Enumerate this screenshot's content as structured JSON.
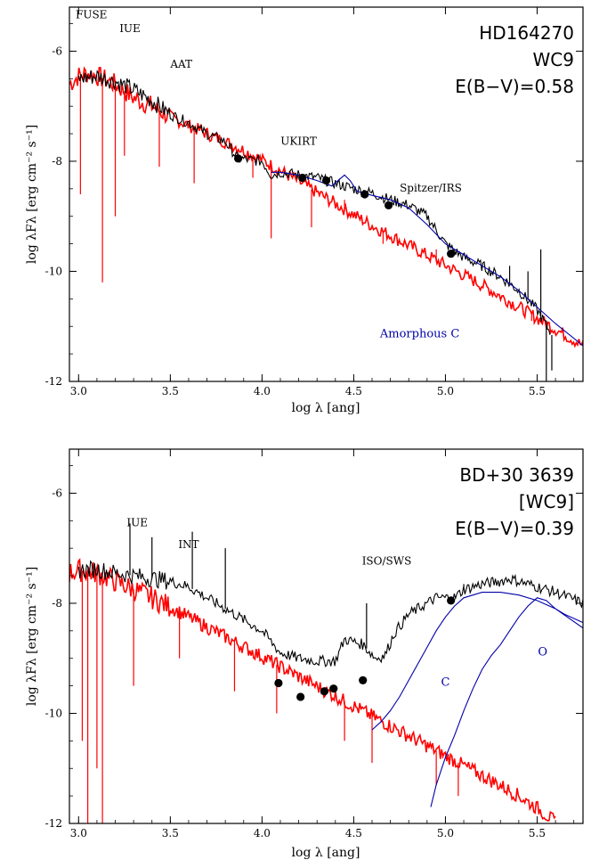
{
  "colors": {
    "model": "#ff0000",
    "observed": "#000000",
    "dust": "#0000aa",
    "photometry": "#000000"
  },
  "chart_data": [
    {
      "type": "line",
      "panel": "top",
      "xlabel": "log λ [ang]",
      "ylabel": "log λFλ [erg cm⁻² s⁻¹]",
      "xlim": [
        2.95,
        5.75
      ],
      "ylim": [
        -12,
        -5.2
      ],
      "xticks": [
        3.0,
        3.5,
        4.0,
        4.5,
        5.0,
        5.5
      ],
      "xtick_labels": [
        "3.0",
        "3.5",
        "4.0",
        "4.5",
        "5.0",
        "5.5"
      ],
      "yticks": [
        -12,
        -10,
        -8,
        -6
      ],
      "ytick_labels": [
        "-12",
        "-10",
        "-8",
        "-6"
      ],
      "corner_text": [
        "HD164270",
        "WC9",
        "E(B−V)=0.58"
      ],
      "annotations": [
        {
          "text": "FUSE",
          "x": 3.07,
          "y": -5.4
        },
        {
          "text": "IUE",
          "x": 3.28,
          "y": -5.65
        },
        {
          "text": "AAT",
          "x": 3.56,
          "y": -6.3
        },
        {
          "text": "UKIRT",
          "x": 4.2,
          "y": -7.7
        },
        {
          "text": "Spitzer/IRS",
          "x": 4.92,
          "y": -8.55
        }
      ],
      "colored_annotations": [
        {
          "text": "Amorphous C",
          "x": 4.86,
          "y": -11.2,
          "color": "#0000aa"
        }
      ],
      "series": [
        {
          "name": "model",
          "color": "#ff0000",
          "x": [
            2.95,
            3.0,
            3.05,
            3.1,
            3.2,
            3.3,
            3.4,
            3.5,
            3.6,
            3.7,
            3.8,
            3.9,
            4.0,
            4.1,
            4.2,
            4.3,
            4.4,
            4.5,
            4.6,
            4.7,
            4.8,
            4.9,
            5.0,
            5.1,
            5.2,
            5.3,
            5.4,
            5.5,
            5.6,
            5.75
          ],
          "y": [
            -6.6,
            -6.45,
            -6.4,
            -6.45,
            -6.6,
            -6.85,
            -7.0,
            -7.2,
            -7.35,
            -7.5,
            -7.65,
            -7.8,
            -7.98,
            -8.17,
            -8.37,
            -8.57,
            -8.77,
            -8.97,
            -9.17,
            -9.35,
            -9.53,
            -9.71,
            -9.89,
            -10.07,
            -10.25,
            -10.45,
            -10.65,
            -10.85,
            -11.05,
            -11.35
          ],
          "noise": 0.12,
          "spikes": [
            [
              3.01,
              -8.6
            ],
            [
              3.13,
              -10.2
            ],
            [
              3.2,
              -9.0
            ],
            [
              3.25,
              -7.9
            ],
            [
              3.44,
              -8.1
            ],
            [
              3.63,
              -8.4
            ],
            [
              3.95,
              -8.3
            ],
            [
              4.05,
              -9.4
            ],
            [
              4.27,
              -9.2
            ],
            [
              4.45,
              -8.7
            ],
            [
              4.66,
              -9.5
            ],
            [
              4.95,
              -9.6
            ],
            [
              5.08,
              -10.1
            ],
            [
              5.28,
              -10.4
            ],
            [
              5.47,
              -10.9
            ]
          ]
        },
        {
          "name": "observed",
          "color": "#000000",
          "x": [
            3.0,
            3.1,
            3.2,
            3.3,
            3.4,
            3.5,
            3.6,
            3.7,
            3.8,
            3.87,
            4.0,
            4.05,
            4.1,
            4.2,
            4.3,
            4.4,
            4.5,
            4.6,
            4.7,
            4.8,
            4.9,
            5.0,
            5.1,
            5.2,
            5.3,
            5.4,
            5.5,
            5.57
          ],
          "y": [
            -6.5,
            -6.45,
            -6.55,
            -6.7,
            -6.9,
            -7.15,
            -7.3,
            -7.5,
            -7.65,
            -7.95,
            -8.0,
            -8.25,
            -8.2,
            -8.25,
            -8.3,
            -8.4,
            -8.5,
            -8.58,
            -8.7,
            -8.8,
            -9.0,
            -9.5,
            -9.75,
            -9.9,
            -10.1,
            -10.35,
            -10.7,
            -11.1
          ],
          "noise": 0.1,
          "spikes": [
            [
              5.35,
              -9.9
            ],
            [
              5.45,
              -10.0
            ],
            [
              5.52,
              -9.6
            ],
            [
              5.55,
              -12.0
            ],
            [
              5.58,
              -11.8
            ]
          ]
        },
        {
          "name": "amorphous-C",
          "color": "#0000aa",
          "x": [
            4.05,
            4.1,
            4.2,
            4.3,
            4.38,
            4.45,
            4.48,
            4.52,
            4.6,
            4.7,
            4.8,
            4.9,
            5.0,
            5.1,
            5.2,
            5.3,
            5.4,
            5.5,
            5.6,
            5.75
          ],
          "y": [
            -8.2,
            -8.2,
            -8.25,
            -8.35,
            -8.45,
            -8.25,
            -8.35,
            -8.55,
            -8.62,
            -8.7,
            -8.85,
            -9.15,
            -9.5,
            -9.7,
            -9.9,
            -10.1,
            -10.35,
            -10.65,
            -10.95,
            -11.35
          ]
        }
      ],
      "photometry": {
        "x": [
          3.87,
          4.22,
          4.35,
          4.56,
          4.69,
          5.03
        ],
        "y": [
          -7.95,
          -8.3,
          -8.35,
          -8.6,
          -8.8,
          -9.68
        ]
      }
    },
    {
      "type": "line",
      "panel": "bottom",
      "xlabel": "log λ [ang]",
      "ylabel": "log λFλ [erg cm⁻² s⁻¹]",
      "xlim": [
        2.95,
        5.75
      ],
      "ylim": [
        -12,
        -5.2
      ],
      "xticks": [
        3.0,
        3.5,
        4.0,
        4.5,
        5.0,
        5.5
      ],
      "xtick_labels": [
        "3.0",
        "3.5",
        "4.0",
        "4.5",
        "5.0",
        "5.5"
      ],
      "yticks": [
        -12,
        -10,
        -8,
        -6
      ],
      "ytick_labels": [
        "-12",
        "-10",
        "-8",
        "-6"
      ],
      "corner_text": [
        "BD+30 3639",
        "[WC9]",
        "E(B−V)=0.39"
      ],
      "annotations": [
        {
          "text": "IUE",
          "x": 3.32,
          "y": -6.6
        },
        {
          "text": "INT",
          "x": 3.6,
          "y": -7.0
        },
        {
          "text": "ISO/SWS",
          "x": 4.68,
          "y": -7.3
        }
      ],
      "colored_annotations": [
        {
          "text": "C",
          "x": 5.0,
          "y": -9.5,
          "color": "#0000aa"
        },
        {
          "text": "O",
          "x": 5.53,
          "y": -8.95,
          "color": "#0000aa"
        }
      ],
      "series": [
        {
          "name": "model",
          "color": "#ff0000",
          "x": [
            2.95,
            3.0,
            3.1,
            3.2,
            3.3,
            3.4,
            3.5,
            3.6,
            3.7,
            3.8,
            3.9,
            4.0,
            4.1,
            4.2,
            4.3,
            4.4,
            4.5,
            4.6,
            4.7,
            4.8,
            4.9,
            5.0,
            5.1,
            5.2,
            5.3,
            5.4,
            5.5,
            5.6
          ],
          "y": [
            -7.45,
            -7.4,
            -7.45,
            -7.6,
            -7.75,
            -7.9,
            -8.07,
            -8.25,
            -8.43,
            -8.61,
            -8.79,
            -8.97,
            -9.15,
            -9.33,
            -9.51,
            -9.69,
            -9.87,
            -10.05,
            -10.23,
            -10.41,
            -10.59,
            -10.77,
            -10.95,
            -11.13,
            -11.31,
            -11.5,
            -11.72,
            -11.98
          ],
          "noise": 0.13,
          "spikes": [
            [
              3.02,
              -10.5
            ],
            [
              3.05,
              -12.0
            ],
            [
              3.1,
              -11.0
            ],
            [
              3.13,
              -12.0
            ],
            [
              3.3,
              -9.5
            ],
            [
              3.55,
              -9.0
            ],
            [
              3.85,
              -9.6
            ],
            [
              4.08,
              -10.0
            ],
            [
              4.45,
              -10.5
            ],
            [
              4.6,
              -10.9
            ],
            [
              4.95,
              -11.3
            ],
            [
              5.07,
              -11.5
            ]
          ]
        },
        {
          "name": "observed",
          "color": "#000000",
          "x": [
            3.0,
            3.1,
            3.2,
            3.3,
            3.4,
            3.5,
            3.6,
            3.7,
            3.8,
            3.9,
            4.0,
            4.1,
            4.2,
            4.3,
            4.4,
            4.45,
            4.55,
            4.62,
            4.67,
            4.72,
            4.8,
            4.9,
            4.95,
            5.05,
            5.1,
            5.2,
            5.3,
            5.35,
            5.4,
            5.5,
            5.6,
            5.75
          ],
          "y": [
            -7.4,
            -7.38,
            -7.45,
            -7.5,
            -7.55,
            -7.6,
            -7.7,
            -7.9,
            -8.1,
            -8.3,
            -8.5,
            -8.9,
            -9.0,
            -9.05,
            -9.05,
            -8.65,
            -8.75,
            -9.0,
            -8.95,
            -8.55,
            -8.2,
            -8.0,
            -7.9,
            -7.9,
            -7.75,
            -7.65,
            -7.6,
            -7.55,
            -7.6,
            -7.7,
            -7.8,
            -8.0
          ],
          "noise": 0.1,
          "spikes": [
            [
              3.28,
              -6.55
            ],
            [
              3.4,
              -6.8
            ],
            [
              3.62,
              -6.7
            ],
            [
              3.8,
              -7.0
            ],
            [
              4.57,
              -8.0
            ],
            [
              5.1,
              -7.65
            ]
          ]
        },
        {
          "name": "dust-C",
          "color": "#0000aa",
          "x": [
            4.6,
            4.65,
            4.7,
            4.75,
            4.8,
            4.85,
            4.9,
            4.95,
            5.0,
            5.05,
            5.1,
            5.2,
            5.3,
            5.4,
            5.5,
            5.6,
            5.75
          ],
          "y": [
            -10.3,
            -10.15,
            -9.95,
            -9.7,
            -9.4,
            -9.1,
            -8.8,
            -8.5,
            -8.25,
            -8.05,
            -7.9,
            -7.8,
            -7.8,
            -7.85,
            -7.95,
            -8.1,
            -8.45
          ]
        },
        {
          "name": "dust-O",
          "color": "#0000aa",
          "x": [
            4.92,
            4.95,
            5.0,
            5.05,
            5.1,
            5.15,
            5.2,
            5.25,
            5.3,
            5.35,
            5.4,
            5.45,
            5.5,
            5.55,
            5.6,
            5.65,
            5.75
          ],
          "y": [
            -11.7,
            -11.3,
            -10.8,
            -10.4,
            -9.95,
            -9.55,
            -9.2,
            -8.95,
            -8.75,
            -8.5,
            -8.25,
            -8.05,
            -7.9,
            -7.95,
            -8.1,
            -8.2,
            -8.35
          ]
        }
      ],
      "photometry": {
        "x": [
          4.09,
          4.21,
          4.34,
          4.39,
          4.55,
          5.03
        ],
        "y": [
          -9.45,
          -9.7,
          -9.6,
          -9.55,
          -9.4,
          -7.95
        ]
      }
    }
  ]
}
